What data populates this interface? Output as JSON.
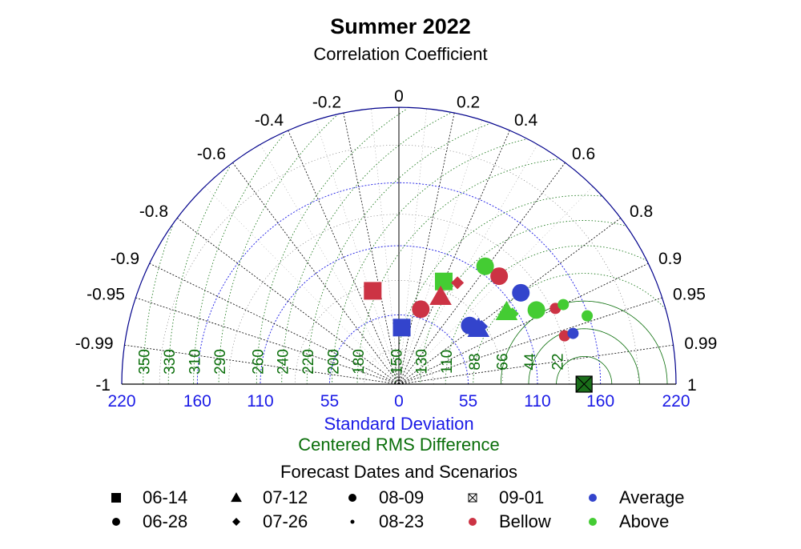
{
  "chart_data": {
    "type": "scatter",
    "subtype": "taylor-diagram",
    "title": "Summer 2022",
    "subtitle": "Correlation Coefficient",
    "xlabel": "Standard Deviation",
    "xlabel2": "Centered RMS Difference",
    "legend_title": "Forecast Dates and Scenarios",
    "reference_sd": 147,
    "sd_max": 220,
    "sd_ticks": [
      "220",
      "160",
      "110",
      "55",
      "0",
      "55",
      "110",
      "160",
      "220"
    ],
    "sd_tick_values": [
      -220,
      -160,
      -110,
      -55,
      0,
      55,
      110,
      160,
      220
    ],
    "correlation_ticks": [
      {
        "value": -1,
        "label": "-1"
      },
      {
        "value": -0.99,
        "label": "-0.99"
      },
      {
        "value": -0.95,
        "label": "-0.95"
      },
      {
        "value": -0.9,
        "label": "-0.9"
      },
      {
        "value": -0.8,
        "label": "-0.8"
      },
      {
        "value": -0.6,
        "label": "-0.6"
      },
      {
        "value": -0.4,
        "label": "-0.4"
      },
      {
        "value": -0.2,
        "label": "-0.2"
      },
      {
        "value": 0,
        "label": "0"
      },
      {
        "value": 0.2,
        "label": "0.2"
      },
      {
        "value": 0.4,
        "label": "0.4"
      },
      {
        "value": 0.6,
        "label": "0.6"
      },
      {
        "value": 0.8,
        "label": "0.8"
      },
      {
        "value": 0.9,
        "label": "0.9"
      },
      {
        "value": 0.95,
        "label": "0.95"
      },
      {
        "value": 0.99,
        "label": "0.99"
      },
      {
        "value": 1,
        "label": "1"
      }
    ],
    "rms_values": [
      22,
      44,
      66,
      88,
      110,
      130,
      150,
      180,
      200,
      220,
      240,
      260,
      290,
      310,
      330,
      350
    ],
    "rms_labels": [
      "22",
      "44",
      "66",
      "88",
      "110",
      "130",
      "150",
      "180",
      "200",
      "220",
      "240",
      "260",
      "290",
      "310",
      "330",
      "350"
    ],
    "colors": {
      "Average": "#3344cc",
      "Bellow": "#cc3344",
      "Above": "#44cc33",
      "reference": "#1a6e1a",
      "sd_arc": "#1a1ae6",
      "rms": "#0a6e0a"
    },
    "points": [
      {
        "date": "06-14",
        "scenario": "Bellow",
        "sd": 77,
        "corr": -0.27
      },
      {
        "date": "06-14",
        "scenario": "Above",
        "sd": 89,
        "corr": 0.4
      },
      {
        "date": "06-14",
        "scenario": "Average",
        "sd": 45,
        "corr": 0.05
      },
      {
        "date": "06-14",
        "scenario": "reference",
        "sd": 147,
        "corr": 1
      },
      {
        "date": "07-12",
        "scenario": "Bellow",
        "sd": 77,
        "corr": 0.43
      },
      {
        "date": "07-12",
        "scenario": "Above",
        "sd": 103,
        "corr": 0.83
      },
      {
        "date": "07-12",
        "scenario": "Average",
        "sd": 77,
        "corr": 0.82
      },
      {
        "date": "06-28",
        "scenario": "Bellow",
        "sd": 62,
        "corr": 0.28
      },
      {
        "date": "06-28",
        "scenario": "Bellow",
        "sd": 117,
        "corr": 0.68
      },
      {
        "date": "06-28",
        "scenario": "Above",
        "sd": 116,
        "corr": 0.59
      },
      {
        "date": "06-28",
        "scenario": "Above",
        "sd": 124,
        "corr": 0.88
      },
      {
        "date": "06-28",
        "scenario": "Average",
        "sd": 73,
        "corr": 0.77
      },
      {
        "date": "06-28",
        "scenario": "Average",
        "sd": 121,
        "corr": 0.8
      },
      {
        "date": "07-26",
        "scenario": "Bellow",
        "sd": 93,
        "corr": 0.5
      },
      {
        "date": "07-26",
        "scenario": "Above",
        "sd": 106,
        "corr": 0.85
      },
      {
        "date": "07-26",
        "scenario": "Average",
        "sd": 80,
        "corr": 0.82
      },
      {
        "date": "08-09",
        "scenario": "Bellow",
        "sd": 138,
        "corr": 0.9
      },
      {
        "date": "08-09",
        "scenario": "Above",
        "sd": 145,
        "corr": 0.9
      },
      {
        "date": "08-23",
        "scenario": "Bellow",
        "sd": 137,
        "corr": 0.96
      },
      {
        "date": "08-23",
        "scenario": "Average",
        "sd": 144,
        "corr": 0.96
      },
      {
        "date": "08-23",
        "scenario": "Above",
        "sd": 159,
        "corr": 0.94
      }
    ],
    "legend": [
      {
        "label": "06-14",
        "marker": "square"
      },
      {
        "label": "07-12",
        "marker": "triangle"
      },
      {
        "label": "08-09",
        "marker": "circle"
      },
      {
        "label": "09-01",
        "marker": "crossed-square"
      },
      {
        "label": "Average",
        "marker": "dot",
        "color": "#3344cc"
      },
      {
        "label": "06-28",
        "marker": "circle"
      },
      {
        "label": "07-26",
        "marker": "diamond"
      },
      {
        "label": "08-23",
        "marker": "small-dot"
      },
      {
        "label": "Bellow",
        "marker": "dot",
        "color": "#cc3344"
      },
      {
        "label": "Above",
        "marker": "dot",
        "color": "#44cc33"
      }
    ]
  }
}
